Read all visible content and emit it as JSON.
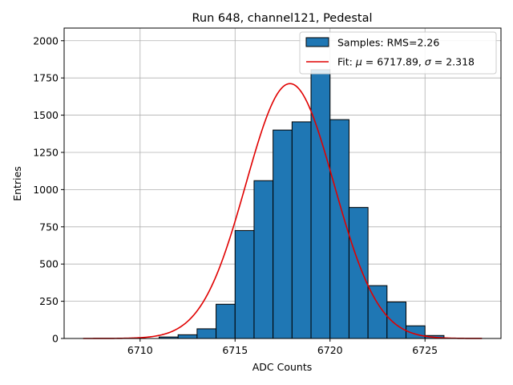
{
  "chart_data": {
    "type": "bar",
    "title": "Run 648, channel121, Pedestal",
    "xlabel": "ADC Counts",
    "ylabel": "Entries",
    "xlim": [
      6706,
      6729
    ],
    "ylim": [
      0,
      2085
    ],
    "xticks": [
      6710,
      6715,
      6720,
      6725
    ],
    "yticks": [
      0,
      250,
      500,
      750,
      1000,
      1250,
      1500,
      1750,
      2000
    ],
    "grid": true,
    "legend_position": "top-right",
    "bar_color": "#1f77b4",
    "fit_color": "#e00000",
    "histogram": {
      "name": "Samples: RMS=2.26",
      "bin_edges": [
        6707,
        6708,
        6709,
        6710,
        6711,
        6712,
        6713,
        6714,
        6715,
        6716,
        6717,
        6718,
        6719,
        6720,
        6721,
        6722,
        6723,
        6724,
        6725,
        6726
      ],
      "counts": [
        0,
        0,
        0,
        0,
        10,
        25,
        65,
        230,
        725,
        1060,
        1400,
        1455,
        1805,
        1470,
        880,
        355,
        245,
        85,
        20
      ]
    },
    "fit": {
      "name_prefix": "Fit: ",
      "mu_symbol": "μ",
      "mu_text": " = 6717.89, ",
      "sigma_symbol": "σ",
      "sigma_text": " = 2.318",
      "mu": 6717.89,
      "sigma": 2.318,
      "amplitude": 1712,
      "x_range": [
        6707,
        6728
      ]
    }
  }
}
